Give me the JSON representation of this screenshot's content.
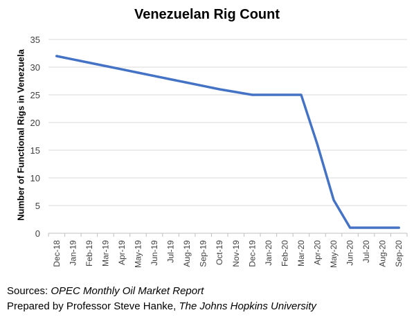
{
  "chart_data": {
    "type": "line",
    "title": "Venezuelan Rig Count",
    "xlabel": "",
    "ylabel": "Number of Functional Rigs in Venezuela",
    "ylim": [
      0,
      35
    ],
    "yticks": [
      0,
      5,
      10,
      15,
      20,
      25,
      30,
      35
    ],
    "grid": true,
    "legend": "none",
    "categories": [
      "Dec-18",
      "Jan-19",
      "Feb-19",
      "Mar-19",
      "Apr-19",
      "May-19",
      "Jun-19",
      "Jul-19",
      "Aug-19",
      "Sep-19",
      "Oct-19",
      "Nov-19",
      "Dec-19",
      "Jan-20",
      "Feb-20",
      "Mar-20",
      "Apr-20",
      "May-20",
      "Jun-20",
      "Jul-20",
      "Aug-20",
      "Sep-20"
    ],
    "series": [
      {
        "color": "#4472C4",
        "values": [
          32,
          31.4,
          30.8,
          30.2,
          29.6,
          29.0,
          28.4,
          27.8,
          27.2,
          26.6,
          26.0,
          25.5,
          25,
          25,
          25,
          25,
          16,
          6,
          1,
          1,
          1,
          1
        ]
      }
    ]
  },
  "footer": {
    "sources_prefix": "Sources: ",
    "sources_report": "OPEC Monthly Oil Market Report",
    "prepared_prefix": "Prepared by Professor Steve Hanke, ",
    "prepared_institution": "The Johns Hopkins University"
  },
  "colors": {
    "line": "#4472C4",
    "grid": "#d9d9d9",
    "axis": "#bfbfbf"
  }
}
